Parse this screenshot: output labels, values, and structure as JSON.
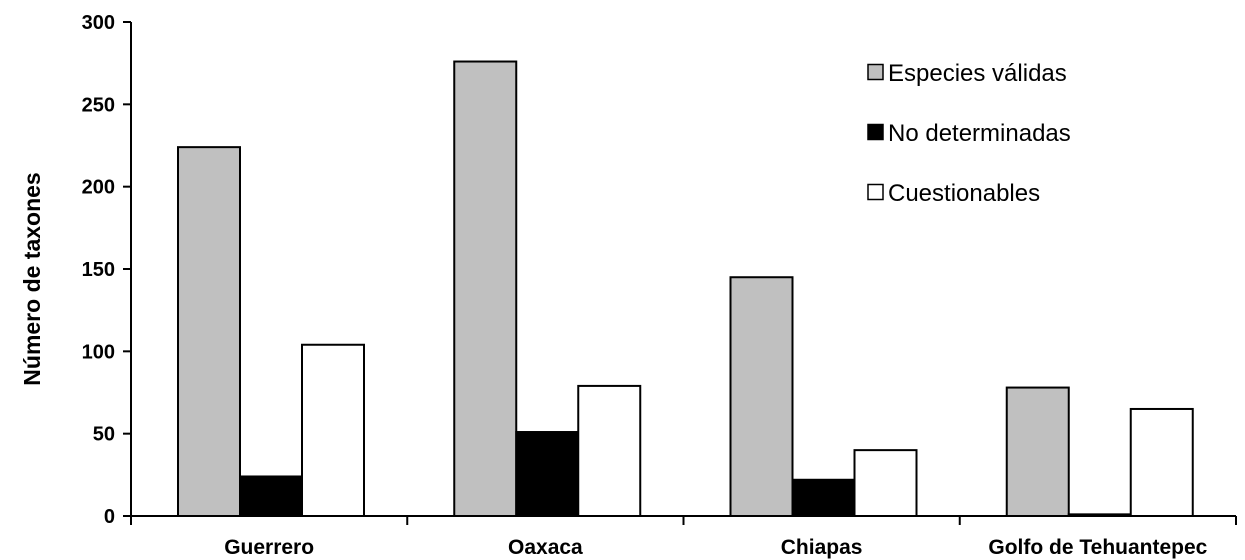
{
  "chart_data": {
    "type": "bar",
    "title": "",
    "xlabel": "",
    "ylabel": "Número de taxones",
    "ylim": [
      0,
      300
    ],
    "yticks": [
      0,
      50,
      100,
      150,
      200,
      250,
      300
    ],
    "grid": false,
    "legend_position": "top-right",
    "categories": [
      "Guerrero",
      "Oaxaca",
      "Chiapas",
      "Golfo de Tehuantepec"
    ],
    "series": [
      {
        "name": "Especies válidas",
        "color": "#c0c0c0",
        "values": [
          224,
          276,
          145,
          78
        ]
      },
      {
        "name": "No determinadas",
        "color": "#000000",
        "values": [
          24,
          51,
          22,
          1
        ]
      },
      {
        "name": "Cuestionables",
        "color": "#ffffff",
        "values": [
          104,
          79,
          40,
          65
        ]
      }
    ]
  }
}
